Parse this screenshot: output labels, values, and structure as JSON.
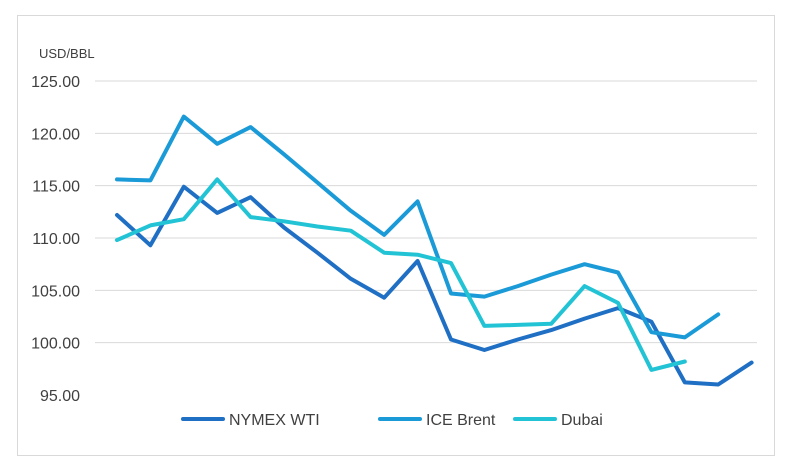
{
  "chart_data": {
    "type": "line",
    "title": "",
    "ylabel": "USD/BBL",
    "xlabel": "",
    "ylim": [
      95,
      125
    ],
    "yticks": [
      95,
      100,
      105,
      110,
      115,
      120,
      125
    ],
    "ytick_labels": [
      "95.00",
      "100.00",
      "105.00",
      "110.00",
      "115.00",
      "120.00",
      "125.00"
    ],
    "grid": true,
    "legend_position": "bottom",
    "x": [
      0,
      1,
      2,
      3,
      4,
      5,
      6,
      7,
      8,
      9,
      10,
      11,
      12,
      13,
      14,
      15,
      16,
      17,
      18,
      19,
      20,
      21
    ],
    "series": [
      {
        "name": "NYMEX WTI",
        "color": "#1f6fc4",
        "values": [
          112.2,
          109.3,
          114.9,
          112.4,
          113.9,
          111.0,
          108.6,
          106.1,
          104.3,
          107.8,
          100.3,
          99.3,
          100.3,
          101.2,
          102.3,
          103.3,
          102.0,
          96.2,
          96.0,
          98.1,
          null,
          null
        ]
      },
      {
        "name": "ICE Brent",
        "color": "#1b9ad8",
        "values": [
          115.6,
          115.5,
          121.6,
          119.0,
          120.6,
          118.0,
          115.3,
          112.6,
          110.3,
          113.5,
          104.7,
          104.4,
          105.4,
          106.5,
          107.5,
          106.7,
          101.0,
          100.5,
          102.7,
          null,
          null,
          null
        ]
      },
      {
        "name": "Dubai",
        "color": "#22c3d4",
        "values": [
          109.8,
          111.2,
          111.8,
          115.6,
          112.0,
          111.6,
          111.1,
          110.7,
          108.6,
          108.4,
          107.6,
          101.6,
          101.7,
          101.8,
          105.4,
          103.8,
          97.4,
          98.2,
          null,
          null,
          null,
          null
        ]
      }
    ]
  }
}
